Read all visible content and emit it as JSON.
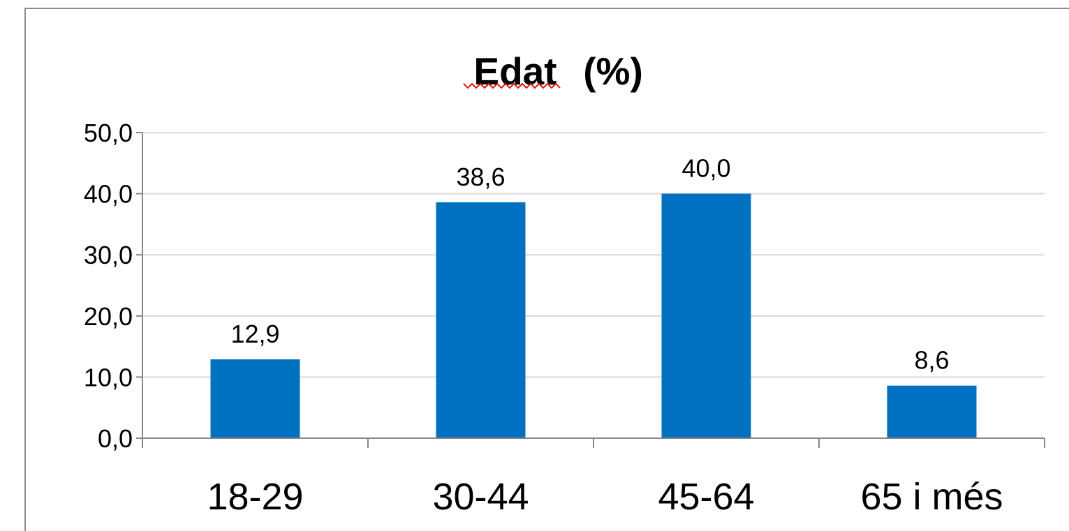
{
  "chart_data": {
    "type": "bar",
    "title": "Edat (%)",
    "title_parts": {
      "word": "Edat",
      "unit": "(%)"
    },
    "categories": [
      "18-29",
      "30-44",
      "45-64",
      "65 i més"
    ],
    "values": [
      12.9,
      38.6,
      40.0,
      8.6
    ],
    "data_labels": [
      "12,9",
      "38,6",
      "40,0",
      "8,6"
    ],
    "ylim": [
      0,
      50
    ],
    "y_ticks": [
      0,
      10,
      20,
      30,
      40,
      50
    ],
    "y_tick_labels": [
      "0,0",
      "10,0",
      "20,0",
      "30,0",
      "40,0",
      "50,0"
    ],
    "xlabel": "",
    "ylabel": "",
    "grid": true,
    "legend": "none",
    "bar_color": "#0070C0",
    "grid_color": "#d9d9d9",
    "axis_color": "#868686"
  }
}
